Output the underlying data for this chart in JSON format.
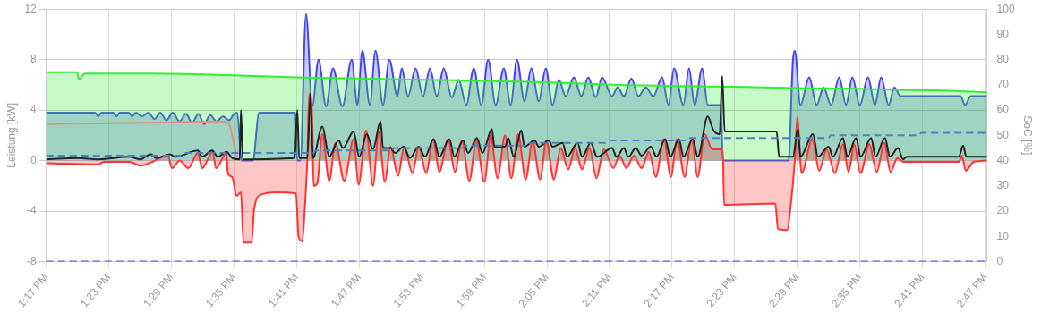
{
  "chart_data": {
    "type": "line",
    "ylabel": "Leistung [kW]",
    "y2label": "SoC [%]",
    "grid": true,
    "legend": false,
    "marker": "none",
    "xlim": [
      13.283,
      14.786
    ],
    "xticks": [
      {
        "value": 13.283,
        "label": "1:17 PM"
      },
      {
        "value": 13.383,
        "label": "1:23 PM"
      },
      {
        "value": 13.483,
        "label": "1:29 PM"
      },
      {
        "value": 13.583,
        "label": "1:35 PM"
      },
      {
        "value": 13.683,
        "label": "1:41 PM"
      },
      {
        "value": 13.783,
        "label": "1:47 PM"
      },
      {
        "value": 13.883,
        "label": "1:53 PM"
      },
      {
        "value": 13.983,
        "label": "1:59 PM"
      },
      {
        "value": 14.083,
        "label": "2:05 PM"
      },
      {
        "value": 14.183,
        "label": "2:11 PM"
      },
      {
        "value": 14.283,
        "label": "2:17 PM"
      },
      {
        "value": 14.383,
        "label": "2:23 PM"
      },
      {
        "value": 14.483,
        "label": "2:29 PM"
      },
      {
        "value": 14.583,
        "label": "2:35 PM"
      },
      {
        "value": 14.683,
        "label": "2:41 PM"
      },
      {
        "value": 14.783,
        "label": "2:47 PM"
      }
    ],
    "ylim": [
      -8,
      12
    ],
    "yticks": [
      -8,
      -4,
      0,
      4,
      8,
      12
    ],
    "y2lim": [
      0,
      100
    ],
    "y2ticks": [
      0,
      10,
      20,
      30,
      40,
      50,
      60,
      70,
      80,
      90,
      100
    ],
    "series": [
      {
        "type": "area",
        "color": "#4444ee",
        "x": [
          13.283,
          13.361,
          13.366,
          13.371,
          13.39,
          13.395,
          13.4,
          13.415,
          13.42,
          13.426,
          13.436,
          13.446,
          13.456,
          13.465,
          13.475,
          13.485,
          13.496,
          13.506,
          13.516,
          13.526,
          13.535,
          13.545,
          13.555,
          13.565,
          13.575,
          13.583,
          13.588,
          13.595,
          13.613,
          13.623,
          13.681,
          13.684,
          13.689,
          13.698,
          13.708,
          13.718,
          13.73,
          13.741,
          13.756,
          13.771,
          13.78,
          13.788,
          13.8,
          13.809,
          13.821,
          13.831,
          13.844,
          13.851,
          13.861,
          13.873,
          13.885,
          13.896,
          13.907,
          13.918,
          13.931,
          13.942,
          13.954,
          13.966,
          13.978,
          13.989,
          14.001,
          14.014,
          14.025,
          14.035,
          14.047,
          14.058,
          14.07,
          14.081,
          14.092,
          14.102,
          14.113,
          14.126,
          14.138,
          14.149,
          14.161,
          14.171,
          14.187,
          14.196,
          14.206,
          14.218,
          14.229,
          14.241,
          14.253,
          14.267,
          14.277,
          14.286,
          14.301,
          14.31,
          14.319,
          14.331,
          14.34,
          14.361,
          14.364,
          14.469,
          14.476,
          14.479,
          14.488,
          14.502,
          14.514,
          14.525,
          14.537,
          14.55,
          14.561,
          14.571,
          14.583,
          14.596,
          14.607,
          14.617,
          14.629,
          14.638,
          14.648,
          14.744,
          14.751,
          14.76,
          14.786
        ],
        "values": [
          3.8,
          3.8,
          3.5,
          3.8,
          3.8,
          3.5,
          3.8,
          3.8,
          3.5,
          3.8,
          3.5,
          3.8,
          3.3,
          3.8,
          3.2,
          3.8,
          3.1,
          3.7,
          3.0,
          3.7,
          2.9,
          3.6,
          3.1,
          3.5,
          3.2,
          3.7,
          3.8,
          0,
          0,
          3.8,
          3.8,
          0,
          0,
          11.6,
          4.3,
          8.0,
          4.3,
          7.3,
          4.3,
          8.0,
          4.4,
          8.7,
          4.4,
          8.7,
          4.4,
          8.0,
          5.1,
          7.3,
          5.1,
          7.3,
          5.1,
          7.3,
          5.1,
          7.3,
          5.0,
          6.4,
          4.4,
          7.3,
          4.4,
          8.0,
          4.4,
          7.3,
          4.4,
          8.0,
          4.7,
          7.3,
          4.7,
          7.3,
          4.4,
          6.4,
          5.1,
          6.6,
          5.1,
          6.6,
          5.0,
          6.6,
          5.1,
          5.8,
          5.1,
          6.5,
          5.1,
          5.8,
          5.1,
          6.6,
          4.4,
          7.3,
          4.4,
          7.3,
          4.4,
          7.3,
          4.4,
          4.4,
          0,
          0,
          7.9,
          8.7,
          4.4,
          6.6,
          4.4,
          5.8,
          4.4,
          6.6,
          4.4,
          6.6,
          4.4,
          6.6,
          4.4,
          6.6,
          4.4,
          5.8,
          5.1,
          5.1,
          4.4,
          5.1,
          5.1
        ]
      },
      {
        "type": "area",
        "color": "#33ee33",
        "x": [
          13.283,
          13.332,
          13.335,
          13.345,
          13.45,
          13.583,
          13.683,
          13.783,
          13.95,
          14.083,
          14.2,
          14.3,
          14.383,
          14.483,
          14.583,
          14.642,
          14.717,
          14.786
        ],
        "values": [
          7.0,
          7.0,
          6.45,
          6.9,
          6.9,
          6.75,
          6.6,
          6.5,
          6.35,
          6.2,
          6.0,
          5.9,
          5.85,
          5.75,
          5.7,
          5.6,
          5.55,
          5.4
        ]
      },
      {
        "type": "line",
        "color": "#e88a8a",
        "x": [
          13.283,
          13.45,
          13.565,
          13.575,
          13.582,
          13.588
        ],
        "values": [
          2.9,
          3.0,
          3.1,
          2.9,
          1.5,
          0.2
        ]
      },
      {
        "type": "area",
        "color": "#ff3333",
        "x": [
          13.283,
          13.366,
          13.375,
          13.416,
          13.434,
          13.448,
          13.477,
          13.484,
          13.496,
          13.51,
          13.525,
          13.532,
          13.549,
          13.554,
          13.571,
          13.573,
          13.58,
          13.587,
          13.594,
          13.598,
          13.611,
          13.615,
          13.626,
          13.65,
          13.682,
          13.686,
          13.692,
          13.696,
          13.7,
          13.703,
          13.708,
          13.71,
          13.716,
          13.724,
          13.735,
          13.745,
          13.759,
          13.774,
          13.782,
          13.794,
          13.805,
          13.814,
          13.824,
          13.833,
          13.845,
          13.855,
          13.868,
          13.878,
          13.89,
          13.901,
          13.911,
          13.925,
          13.936,
          13.947,
          13.959,
          13.97,
          13.983,
          13.993,
          14.004,
          14.016,
          14.026,
          14.037,
          14.049,
          14.06,
          14.072,
          14.082,
          14.094,
          14.105,
          14.117,
          14.128,
          14.139,
          14.151,
          14.162,
          14.174,
          14.189,
          14.199,
          14.21,
          14.222,
          14.234,
          14.246,
          14.257,
          14.27,
          14.281,
          14.291,
          14.303,
          14.314,
          14.324,
          14.335,
          14.347,
          14.364,
          14.366,
          14.448,
          14.452,
          14.467,
          14.472,
          14.479,
          14.483,
          14.49,
          14.507,
          14.518,
          14.53,
          14.543,
          14.556,
          14.565,
          14.574,
          14.584,
          14.598,
          14.61,
          14.622,
          14.632,
          14.643,
          14.652,
          14.741,
          14.746,
          14.752,
          14.765,
          14.786
        ],
        "values": [
          -0.2,
          -0.3,
          -0.1,
          -0.1,
          -0.4,
          -0.2,
          0.4,
          -0.6,
          0,
          -0.6,
          0.6,
          -0.6,
          0.7,
          -0.6,
          0.6,
          -1.0,
          -1.3,
          -2.8,
          -2.5,
          -6.5,
          -6.5,
          -3.9,
          -2.7,
          -2.5,
          -2.6,
          -6.0,
          -6.4,
          -3.8,
          0,
          5.3,
          3.2,
          -2.0,
          -1.8,
          2.1,
          -1.6,
          1.4,
          -1.6,
          1.7,
          -1.9,
          2.4,
          -2.0,
          2.3,
          -1.7,
          1.1,
          -1.2,
          1.1,
          -1.0,
          1.1,
          -1.0,
          1.7,
          -0.9,
          1.7,
          -0.9,
          1.6,
          -1.6,
          1.6,
          -1.7,
          2.0,
          -1.4,
          2.0,
          -1.4,
          2.1,
          -1.5,
          1.6,
          -1.5,
          1.6,
          -1.5,
          1.0,
          -0.7,
          1.0,
          -0.7,
          1.0,
          -1.4,
          0.9,
          -0.6,
          0.4,
          -0.6,
          0.4,
          -0.6,
          0.7,
          -1.3,
          1.7,
          -1.3,
          1.7,
          -1.3,
          1.7,
          -1.3,
          2.1,
          0.9,
          0.9,
          -3.5,
          -3.4,
          -5.4,
          -5.5,
          -3.8,
          0,
          3.4,
          -1.0,
          1.7,
          -0.8,
          0.9,
          -1.0,
          1.3,
          -0.9,
          1.3,
          -1.0,
          1.3,
          -0.9,
          1.4,
          -0.9,
          0.2,
          -0.1,
          -0.1,
          0.4,
          -0.8,
          -0.1,
          0
        ]
      },
      {
        "type": "line",
        "color": "#222222",
        "x": [
          13.283,
          13.333,
          13.366,
          13.416,
          13.433,
          13.45,
          13.458,
          13.481,
          13.489,
          13.525,
          13.532,
          13.548,
          13.557,
          13.571,
          13.58,
          13.592,
          13.594,
          13.597,
          13.68,
          13.684,
          13.687,
          13.7,
          13.705,
          13.709,
          13.724,
          13.735,
          13.75,
          13.757,
          13.774,
          13.783,
          13.795,
          13.805,
          13.817,
          13.821,
          13.833,
          13.84,
          13.854,
          13.864,
          13.878,
          13.888,
          13.902,
          13.911,
          13.927,
          13.935,
          13.949,
          13.957,
          13.971,
          13.98,
          13.995,
          13.999,
          14.016,
          14.021,
          14.03,
          14.042,
          14.047,
          14.063,
          14.07,
          14.086,
          14.092,
          14.108,
          14.115,
          14.132,
          14.139,
          14.153,
          14.163,
          14.187,
          14.194,
          14.206,
          14.213,
          14.225,
          14.234,
          14.249,
          14.258,
          14.272,
          14.28,
          14.294,
          14.301,
          14.316,
          14.324,
          14.34,
          14.349,
          14.359,
          14.363,
          14.367,
          14.45,
          14.454,
          14.476,
          14.484,
          14.488,
          14.508,
          14.516,
          14.533,
          14.54,
          14.556,
          14.563,
          14.577,
          14.584,
          14.601,
          14.608,
          14.623,
          14.631,
          14.644,
          14.652,
          14.658,
          14.741,
          14.748,
          14.753,
          14.786
        ],
        "values": [
          0.1,
          0.2,
          0.1,
          0.3,
          0.1,
          0.5,
          0.2,
          0.5,
          0.3,
          0.8,
          0.3,
          0.8,
          0.3,
          0.7,
          0.2,
          0.1,
          4.0,
          0.1,
          0.2,
          4.0,
          0.2,
          0.2,
          5.3,
          0.2,
          2.7,
          0.3,
          1.6,
          1.0,
          2.3,
          0.3,
          2.1,
          0.9,
          3.1,
          1.0,
          1.0,
          0.6,
          1.1,
          0.2,
          1.1,
          0.3,
          1.7,
          0.3,
          1.7,
          0.3,
          1.6,
          0.6,
          1.8,
          0.6,
          2.5,
          1.1,
          1.1,
          1.8,
          0.3,
          2.4,
          1.1,
          1.6,
          1.1,
          1.6,
          1.1,
          1.4,
          0.3,
          1.4,
          0.3,
          1.4,
          0.3,
          1.0,
          0.3,
          1.0,
          0.3,
          1.0,
          0.4,
          1.1,
          0.3,
          1.7,
          0.3,
          1.7,
          0.3,
          1.7,
          0.3,
          3.5,
          2.4,
          2.1,
          6.7,
          2.3,
          2.3,
          0.3,
          0.3,
          2.5,
          0.3,
          2.1,
          0.3,
          1.1,
          0.3,
          1.8,
          0.3,
          1.8,
          0.3,
          1.8,
          0.3,
          1.8,
          0.3,
          1.0,
          0.1,
          0.3,
          0.3,
          1.2,
          0.3,
          0.3
        ]
      },
      {
        "type": "line",
        "axis": "y2",
        "line_style": "dashed",
        "color": "#4a80c0",
        "x": [
          13.283,
          13.503,
          13.506,
          13.71,
          13.713,
          13.835,
          13.838,
          13.95,
          13.953,
          14.053,
          14.056,
          14.176,
          14.18,
          14.305,
          14.308,
          14.533,
          14.536,
          14.678,
          14.681,
          14.786
        ],
        "values": [
          42,
          42,
          43,
          43,
          44,
          44,
          45,
          45,
          46,
          46,
          47,
          47,
          48,
          48,
          49,
          49,
          50,
          50,
          51,
          51
        ]
      },
      {
        "type": "line",
        "axis": "y2",
        "line_style": "dashed",
        "color": "#4444ee",
        "x": [
          13.283,
          14.786
        ],
        "values": [
          0,
          0
        ]
      }
    ]
  }
}
